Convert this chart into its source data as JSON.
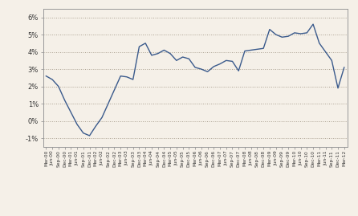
{
  "background_color": "#f5f0e8",
  "line_color": "#3a5a8c",
  "line_width": 1.0,
  "ylim": [
    -1.5,
    6.5
  ],
  "yticks": [
    -1,
    0,
    1,
    2,
    3,
    4,
    5,
    6
  ],
  "ytick_labels": [
    "-1%",
    "0%",
    "1%",
    "2%",
    "3%",
    "4%",
    "5%",
    "6%"
  ],
  "grid_color": "#aaa090",
  "grid_linestyle": ":",
  "grid_linewidth": 0.7,
  "x_labels": [
    "Mar-00",
    "Jun-00",
    "Sep-00",
    "Dec-00",
    "Mar-01",
    "Jun-01",
    "Sep-01",
    "Dec-01",
    "Mar-02",
    "Jun-02",
    "Sep-02",
    "Dec-02",
    "Mar-03",
    "Jun-03",
    "Sep-03",
    "Dec-03",
    "Mar-04",
    "Jun-04",
    "Sep-04",
    "Dec-04",
    "Mar-05",
    "Jun-05",
    "Sep-05",
    "Dec-05",
    "Mar-06",
    "Jun-06",
    "Sep-06",
    "Dec-06",
    "Mar-07",
    "Jun-07",
    "Sep-07",
    "Dec-07",
    "Mar-08",
    "Jun-08",
    "Sep-08",
    "Dec-08",
    "Mar-09",
    "Jun-09",
    "Sep-09",
    "Dec-09",
    "Mar-10",
    "Jun-10",
    "Sep-10",
    "Dec-10",
    "Mar-11",
    "Jun-11",
    "Sep-11",
    "Dec-11",
    "Mar-12"
  ],
  "values": [
    2.6,
    2.4,
    2.0,
    1.2,
    0.5,
    -0.2,
    -0.7,
    -0.85,
    -0.3,
    0.2,
    1.0,
    1.8,
    2.6,
    2.55,
    2.4,
    4.3,
    4.5,
    3.8,
    3.9,
    4.1,
    3.9,
    3.5,
    3.7,
    3.6,
    3.1,
    3.0,
    2.85,
    3.15,
    3.3,
    3.5,
    3.45,
    2.9,
    4.05,
    4.1,
    4.15,
    4.2,
    5.3,
    5.0,
    4.85,
    4.9,
    5.1,
    5.05,
    5.1,
    5.6,
    4.5,
    4.0,
    3.5,
    1.9,
    3.1
  ]
}
